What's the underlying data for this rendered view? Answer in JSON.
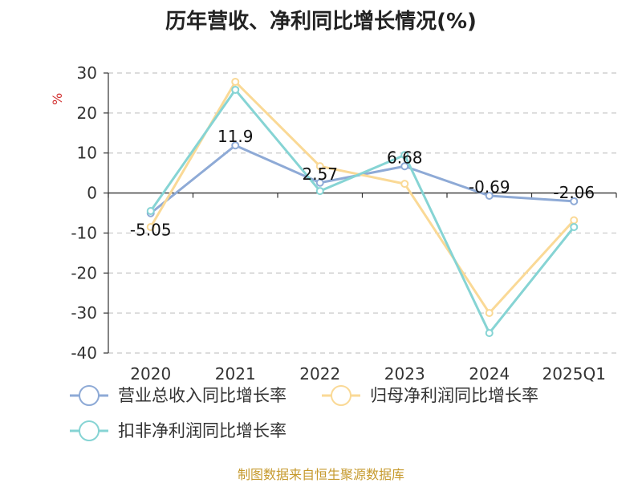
{
  "chart_data": {
    "type": "line",
    "title": "历年营收、净利同比增长情况(%)",
    "ylabel": "%",
    "categories": [
      "2020",
      "2021",
      "2022",
      "2023",
      "2024",
      "2025Q1"
    ],
    "yticks": [
      "30",
      "20",
      "10",
      "0",
      "-10",
      "-20",
      "-30",
      "-40"
    ],
    "ylim": [
      -40,
      30
    ],
    "grid": "horizontal-dashed",
    "legend_position": "bottom",
    "series": [
      {
        "name": "营业总收入同比增长率",
        "color": "#8eaad6",
        "values": [
          -5.05,
          11.9,
          2.57,
          6.68,
          -0.69,
          -2.06
        ],
        "labels": [
          "-5.05",
          "11.9",
          "2.57",
          "6.68",
          "-0.69",
          "-2.06"
        ]
      },
      {
        "name": "归母净利润同比增长率",
        "color": "#fad996",
        "values": [
          -8.5,
          27.8,
          6.7,
          2.3,
          -30.0,
          -6.8
        ]
      },
      {
        "name": "扣非净利润同比增长率",
        "color": "#86d4d4",
        "values": [
          -4.5,
          25.8,
          0.5,
          9.5,
          -35.0,
          -8.5
        ]
      }
    ]
  },
  "footer": {
    "source": "制图数据来自恒生聚源数据库"
  }
}
